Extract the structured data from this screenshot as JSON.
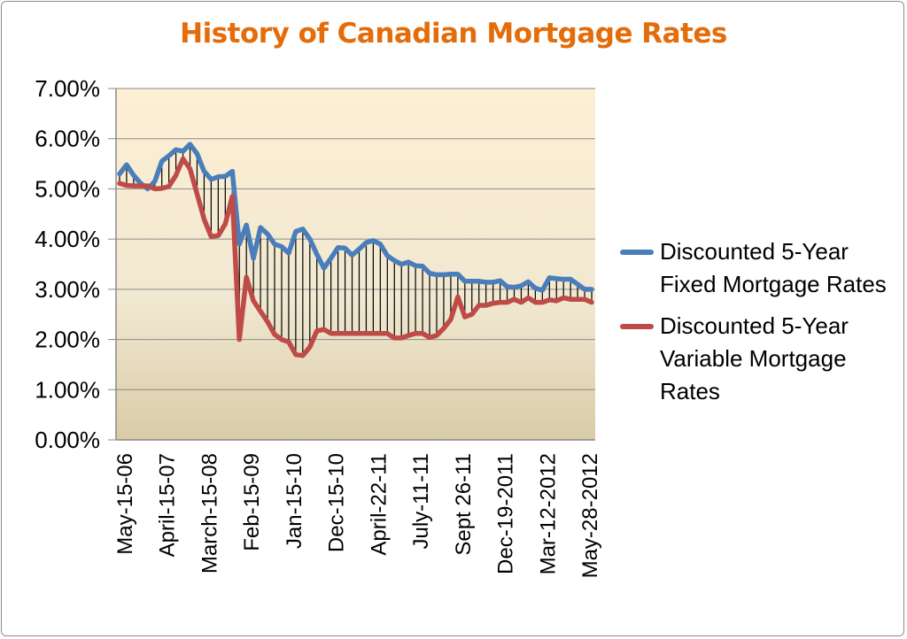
{
  "chart_data": {
    "type": "line",
    "title": "History of Canadian Mortgage Rates",
    "xlabel": "",
    "ylabel": "",
    "ylim": [
      0,
      0.07
    ],
    "y_tick_labels": [
      "0.00%",
      "1.00%",
      "2.00%",
      "3.00%",
      "4.00%",
      "5.00%",
      "6.00%",
      "7.00%"
    ],
    "x_tick_labels": [
      "May-15-06",
      "April-15-07",
      "March-15-08",
      "Feb-15-09",
      "Jan-15-10",
      "Dec-15-10",
      "April-22-11",
      "July-11-11",
      "Sept 26-11",
      "Dec-19-2011",
      "Mar-12-2012",
      "May-28-2012"
    ],
    "grid": "horizontal",
    "legend_position": "right",
    "high_low_lines": true,
    "series": [
      {
        "name": "Discounted 5-Year Fixed Mortgage Rates",
        "color": "#4a7ebb",
        "values": [
          5.3,
          5.48,
          5.27,
          5.11,
          5.0,
          5.15,
          5.55,
          5.66,
          5.78,
          5.75,
          5.89,
          5.7,
          5.35,
          5.19,
          5.24,
          5.25,
          5.35,
          3.9,
          4.28,
          3.62,
          4.23,
          4.1,
          3.9,
          3.85,
          3.72,
          4.15,
          4.2,
          4.0,
          3.7,
          3.42,
          3.62,
          3.83,
          3.82,
          3.68,
          3.8,
          3.93,
          3.97,
          3.9,
          3.67,
          3.57,
          3.5,
          3.54,
          3.47,
          3.46,
          3.32,
          3.29,
          3.29,
          3.3,
          3.3,
          3.16,
          3.16,
          3.16,
          3.14,
          3.14,
          3.17,
          3.05,
          3.04,
          3.07,
          3.15,
          3.02,
          2.98,
          3.23,
          3.21,
          3.2,
          3.2,
          3.1,
          3.0,
          3.0
        ]
      },
      {
        "name": "Discounted 5-Year Variable Mortgage Rates",
        "color": "#be4b48",
        "values": [
          5.11,
          5.07,
          5.06,
          5.06,
          5.06,
          5.0,
          5.01,
          5.05,
          5.27,
          5.6,
          5.4,
          4.9,
          4.4,
          4.05,
          4.07,
          4.3,
          4.85,
          2.0,
          3.24,
          2.77,
          2.56,
          2.35,
          2.1,
          2.0,
          1.95,
          1.7,
          1.68,
          1.85,
          2.17,
          2.2,
          2.12,
          2.12,
          2.12,
          2.12,
          2.12,
          2.12,
          2.12,
          2.12,
          2.12,
          2.03,
          2.03,
          2.08,
          2.12,
          2.12,
          2.04,
          2.08,
          2.22,
          2.4,
          2.85,
          2.45,
          2.5,
          2.68,
          2.68,
          2.72,
          2.74,
          2.74,
          2.8,
          2.74,
          2.83,
          2.74,
          2.74,
          2.79,
          2.77,
          2.83,
          2.8,
          2.8,
          2.8,
          2.74
        ]
      }
    ]
  }
}
